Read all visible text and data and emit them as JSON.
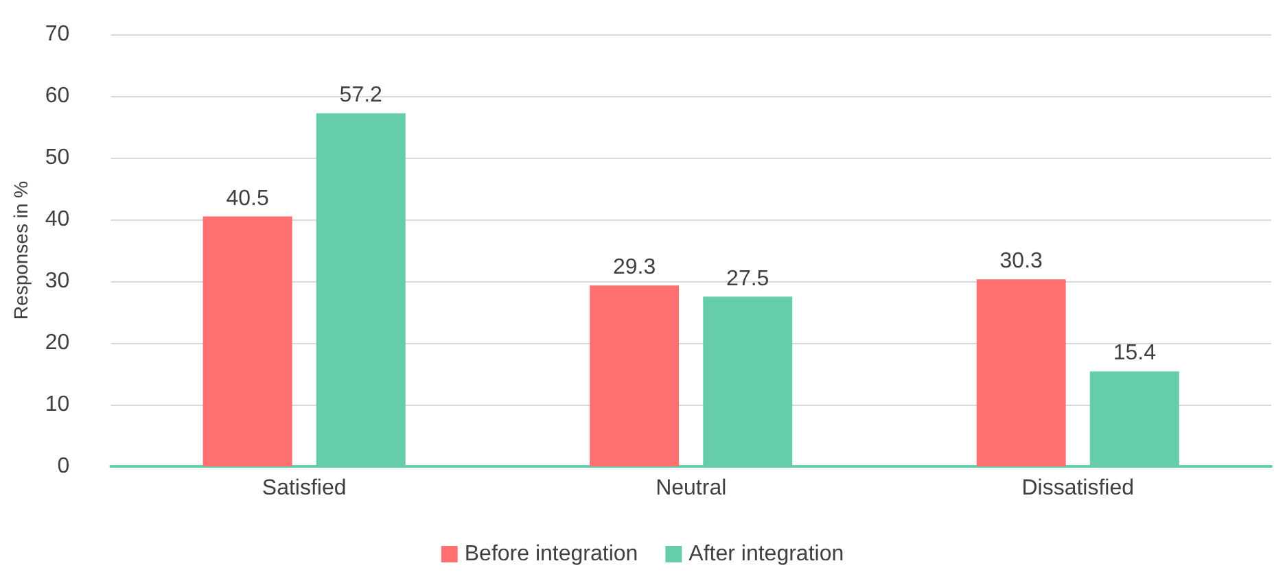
{
  "chart_data": {
    "type": "bar",
    "ylabel": "Responses in %",
    "categories": [
      "Satisfied",
      "Neutral",
      "Dissatisfied"
    ],
    "series": [
      {
        "name": "Before integration",
        "color": "#ff7070",
        "values": [
          40.5,
          29.3,
          30.3
        ]
      },
      {
        "name": "After integration",
        "color": "#66cdaa",
        "values": [
          57.2,
          27.5,
          15.4
        ]
      }
    ],
    "ylim": [
      0,
      70
    ],
    "yticks": [
      0,
      10,
      20,
      30,
      40,
      50,
      60,
      70
    ],
    "grid": "y",
    "legend": "bottom",
    "data_labels": true
  }
}
